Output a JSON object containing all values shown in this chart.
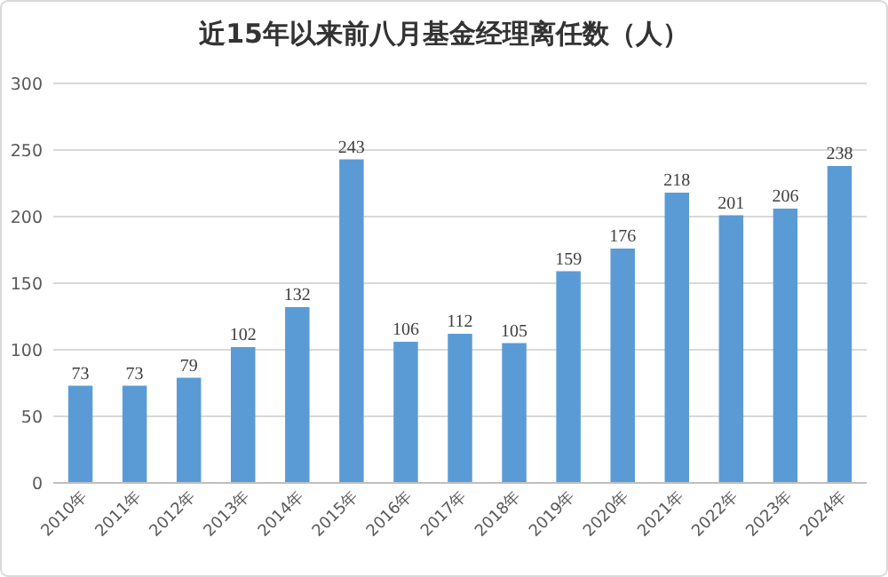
{
  "chart_data": {
    "type": "bar",
    "title": "近15年以来前八月基金经理离任数（人）",
    "categories": [
      "2010年",
      "2011年",
      "2012年",
      "2013年",
      "2014年",
      "2015年",
      "2016年",
      "2017年",
      "2018年",
      "2019年",
      "2020年",
      "2021年",
      "2022年",
      "2023年",
      "2024年"
    ],
    "values": [
      73,
      73,
      79,
      102,
      132,
      243,
      106,
      112,
      105,
      159,
      176,
      218,
      201,
      206,
      238
    ],
    "color": "#5b9bd5",
    "ylim": [
      0,
      300
    ],
    "yticks": [
      0,
      50,
      100,
      150,
      200,
      250,
      300
    ],
    "grid": "y",
    "data_labels": true
  }
}
